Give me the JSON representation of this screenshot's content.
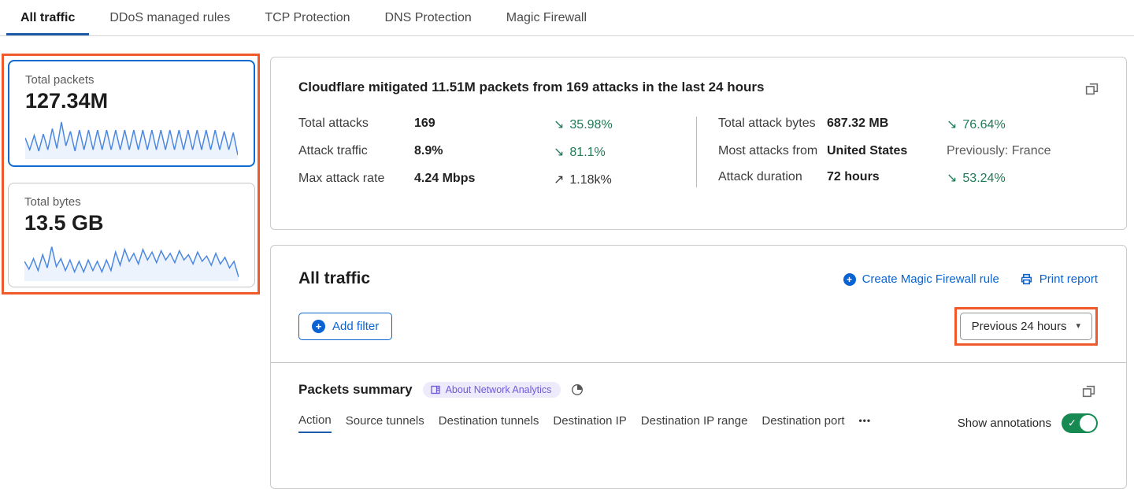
{
  "colors": {
    "accent_blue": "#0a63d2",
    "tab_underline": "#1e5ba9",
    "annotation_orange": "#f0592b",
    "trend_green": "#1f7a55",
    "toggle_green": "#168a52",
    "sparkline_blue": "#4a87e0",
    "badge_purple": "#6f5bd8",
    "badge_bg": "#eceafb",
    "selected_card_border": "#0e6ad4"
  },
  "icons": {
    "plus": "+",
    "caret": "▾",
    "more": "•••",
    "check": "✓"
  },
  "tabs": {
    "items": [
      {
        "label": "All traffic",
        "active": true
      },
      {
        "label": "DDoS managed rules",
        "active": false
      },
      {
        "label": "TCP Protection",
        "active": false
      },
      {
        "label": "DNS Protection",
        "active": false
      },
      {
        "label": "Magic Firewall",
        "active": false
      }
    ]
  },
  "sidebar": {
    "cards": [
      {
        "title": "Total packets",
        "value": "127.34M",
        "selected": true,
        "spark": [
          30,
          48,
          26,
          50,
          24,
          48,
          16,
          46,
          6,
          42,
          20,
          50,
          18,
          48,
          18,
          48,
          18,
          48,
          18,
          48,
          18,
          48,
          18,
          48,
          18,
          48,
          18,
          48,
          18,
          48,
          18,
          48,
          18,
          48,
          18,
          48,
          18,
          48,
          18,
          48,
          18,
          48,
          18,
          48,
          20,
          48,
          22,
          56
        ]
      },
      {
        "title": "Total bytes",
        "value": "13.5 GB",
        "selected": false,
        "spark": [
          32,
          44,
          28,
          46,
          22,
          42,
          10,
          40,
          28,
          46,
          30,
          48,
          32,
          48,
          30,
          46,
          32,
          48,
          30,
          46,
          18,
          38,
          14,
          32,
          20,
          36,
          14,
          30,
          18,
          34,
          16,
          30,
          20,
          34,
          16,
          30,
          22,
          36,
          18,
          32,
          24,
          38,
          20,
          36,
          26,
          42,
          32,
          56
        ]
      }
    ]
  },
  "summary_panel": {
    "title": "Cloudflare mitigated 11.51M packets from 169 attacks in the last 24 hours",
    "stats_left": [
      {
        "label": "Total attacks",
        "value": "169",
        "arrow": "↘",
        "trend": "35.98%",
        "dir": "down"
      },
      {
        "label": "Attack traffic",
        "value": "8.9%",
        "arrow": "↘",
        "trend": "81.1%",
        "dir": "down"
      },
      {
        "label": "Max attack rate",
        "value": "4.24 Mbps",
        "arrow": "↗",
        "trend": "1.18k%",
        "dir": "up"
      }
    ],
    "stats_right": [
      {
        "label": "Total attack bytes",
        "value": "687.32 MB",
        "arrow": "↘",
        "trend": "76.64%",
        "dir": "down"
      },
      {
        "label": "Most attacks from",
        "value": "United States",
        "arrow": "",
        "trend": "Previously: France",
        "dir": "neutral"
      },
      {
        "label": "Attack duration",
        "value": "72 hours",
        "arrow": "↘",
        "trend": "53.24%",
        "dir": "down"
      }
    ]
  },
  "traffic_panel": {
    "title": "All traffic",
    "create_rule_label": "Create Magic Firewall rule",
    "print_label": "Print report",
    "add_filter_label": "Add filter",
    "time_range_label": "Previous 24 hours"
  },
  "packets_summary": {
    "title": "Packets summary",
    "badge_label": "About Network Analytics",
    "tabs": [
      {
        "label": "Action",
        "active": true
      },
      {
        "label": "Source tunnels",
        "active": false
      },
      {
        "label": "Destination tunnels",
        "active": false
      },
      {
        "label": "Destination IP",
        "active": false
      },
      {
        "label": "Destination IP range",
        "active": false
      },
      {
        "label": "Destination port",
        "active": false
      }
    ],
    "show_annotations_label": "Show annotations",
    "toggle_on": true
  }
}
